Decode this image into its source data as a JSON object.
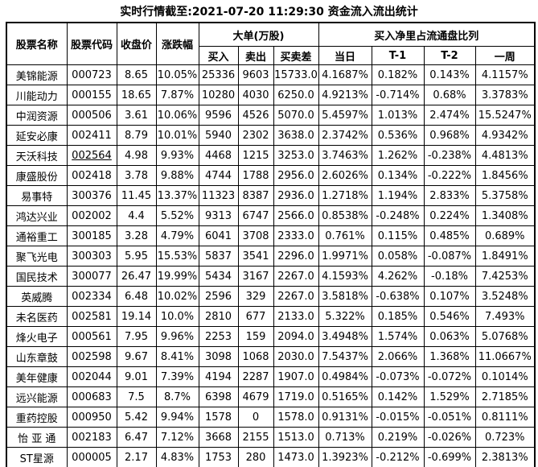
{
  "title": "实时行情截至:2021-07-20 11:29:30 资金流入流出统计",
  "colors": {
    "link_blue": "#1565A5",
    "text_black": "#000000",
    "border_black": "#000000",
    "background_white": "#FFFFFF"
  },
  "table": {
    "headers": {
      "stock_name": "股票名称",
      "stock_code": "股票代码",
      "close_price": "收盘价",
      "change_pct": "涨跌幅",
      "big_order_group": "大单(万股)",
      "buy": "买入",
      "sell": "卖出",
      "diff": "买卖差",
      "ratio_group": "买入净里占流通盘比列",
      "today": "当日",
      "t1": "T-1",
      "t2": "T-2",
      "week": "一周"
    },
    "rows": [
      {
        "name": "美锦能源",
        "code": "000723",
        "close": "8.65",
        "change": "10.05%",
        "buy": "25336",
        "sell": "9603",
        "diff": "15733.0",
        "today": "4.1687%",
        "t1": "0.182%",
        "t2": "0.143%",
        "week": "4.1157%",
        "code_underlined": false
      },
      {
        "name": "川能动力",
        "code": "000155",
        "close": "18.65",
        "change": "7.87%",
        "buy": "10280",
        "sell": "4030",
        "diff": "6250.0",
        "today": "4.9213%",
        "t1": "-0.714%",
        "t2": "0.68%",
        "week": "3.3783%",
        "code_underlined": false
      },
      {
        "name": "中润资源",
        "code": "000506",
        "close": "3.61",
        "change": "10.06%",
        "buy": "9596",
        "sell": "4526",
        "diff": "5070.0",
        "today": "5.4597%",
        "t1": "1.013%",
        "t2": "2.474%",
        "week": "15.5247%",
        "code_underlined": false
      },
      {
        "name": "延安必康",
        "code": "002411",
        "close": "8.79",
        "change": "10.01%",
        "buy": "5940",
        "sell": "2302",
        "diff": "3638.0",
        "today": "2.3742%",
        "t1": "0.536%",
        "t2": "0.968%",
        "week": "4.9342%",
        "code_underlined": false
      },
      {
        "name": "天沃科技",
        "code": "002564",
        "close": "4.98",
        "change": "9.93%",
        "buy": "4468",
        "sell": "1215",
        "diff": "3253.0",
        "today": "3.7463%",
        "t1": "1.262%",
        "t2": "-0.238%",
        "week": "4.4813%",
        "code_underlined": true
      },
      {
        "name": "康盛股份",
        "code": "002418",
        "close": "3.78",
        "change": "9.88%",
        "buy": "4744",
        "sell": "1788",
        "diff": "2956.0",
        "today": "2.6026%",
        "t1": "0.134%",
        "t2": "-0.222%",
        "week": "1.8456%",
        "code_underlined": false
      },
      {
        "name": "易事特",
        "code": "300376",
        "close": "11.45",
        "change": "13.37%",
        "buy": "11323",
        "sell": "8387",
        "diff": "2936.0",
        "today": "1.2718%",
        "t1": "1.194%",
        "t2": "2.833%",
        "week": "5.3758%",
        "code_underlined": false
      },
      {
        "name": "鸿达兴业",
        "code": "002002",
        "close": "4.4",
        "change": "5.52%",
        "buy": "9313",
        "sell": "6747",
        "diff": "2566.0",
        "today": "0.8538%",
        "t1": "-0.248%",
        "t2": "0.224%",
        "week": "1.3408%",
        "code_underlined": false
      },
      {
        "name": "通裕重工",
        "code": "300185",
        "close": "3.28",
        "change": "4.79%",
        "buy": "6041",
        "sell": "3708",
        "diff": "2333.0",
        "today": "0.761%",
        "t1": "0.115%",
        "t2": "0.485%",
        "week": "0.689%",
        "code_underlined": false
      },
      {
        "name": "聚飞光电",
        "code": "300303",
        "close": "5.95",
        "change": "15.53%",
        "buy": "5837",
        "sell": "3541",
        "diff": "2296.0",
        "today": "1.9971%",
        "t1": "0.058%",
        "t2": "-0.087%",
        "week": "1.8491%",
        "code_underlined": false
      },
      {
        "name": "国民技术",
        "code": "300077",
        "close": "26.47",
        "change": "19.99%",
        "buy": "5434",
        "sell": "3167",
        "diff": "2267.0",
        "today": "4.1593%",
        "t1": "4.262%",
        "t2": "-0.18%",
        "week": "7.4253%",
        "code_underlined": false
      },
      {
        "name": "英威腾",
        "code": "002334",
        "close": "6.48",
        "change": "10.02%",
        "buy": "2596",
        "sell": "329",
        "diff": "2267.0",
        "today": "3.5818%",
        "t1": "-0.638%",
        "t2": "0.107%",
        "week": "3.5248%",
        "code_underlined": false
      },
      {
        "name": "未名医药",
        "code": "002581",
        "close": "19.14",
        "change": "10.0%",
        "buy": "2810",
        "sell": "677",
        "diff": "2133.0",
        "today": "5.322%",
        "t1": "0.185%",
        "t2": "0.546%",
        "week": "7.493%",
        "code_underlined": false
      },
      {
        "name": "烽火电子",
        "code": "000561",
        "close": "7.95",
        "change": "9.96%",
        "buy": "2253",
        "sell": "159",
        "diff": "2094.0",
        "today": "3.4948%",
        "t1": "1.574%",
        "t2": "0.063%",
        "week": "5.0768%",
        "code_underlined": false
      },
      {
        "name": "山东章鼓",
        "code": "002598",
        "close": "9.67",
        "change": "8.41%",
        "buy": "3098",
        "sell": "1068",
        "diff": "2030.0",
        "today": "7.5437%",
        "t1": "2.066%",
        "t2": "1.368%",
        "week": "11.0667%",
        "code_underlined": false
      },
      {
        "name": "美年健康",
        "code": "002044",
        "close": "9.01",
        "change": "7.39%",
        "buy": "4194",
        "sell": "2287",
        "diff": "1907.0",
        "today": "0.4984%",
        "t1": "-0.073%",
        "t2": "-0.072%",
        "week": "0.1014%",
        "code_underlined": false
      },
      {
        "name": "远兴能源",
        "code": "000683",
        "close": "7.5",
        "change": "8.7%",
        "buy": "6398",
        "sell": "4679",
        "diff": "1719.0",
        "today": "0.5165%",
        "t1": "0.142%",
        "t2": "1.529%",
        "week": "2.7185%",
        "code_underlined": false
      },
      {
        "name": "重药控股",
        "code": "000950",
        "close": "5.42",
        "change": "9.94%",
        "buy": "1578",
        "sell": "0",
        "diff": "1578.0",
        "today": "0.9131%",
        "t1": "-0.015%",
        "t2": "-0.051%",
        "week": "0.8111%",
        "code_underlined": false
      },
      {
        "name": "怡 亚 通",
        "code": "002183",
        "close": "6.47",
        "change": "7.12%",
        "buy": "3668",
        "sell": "2155",
        "diff": "1513.0",
        "today": "0.713%",
        "t1": "0.219%",
        "t2": "-0.026%",
        "week": "0.723%",
        "code_underlined": false
      },
      {
        "name": "ST星源",
        "code": "000005",
        "close": "2.17",
        "change": "4.83%",
        "buy": "1753",
        "sell": "280",
        "diff": "1473.0",
        "today": "1.3923%",
        "t1": "-0.212%",
        "t2": "-0.699%",
        "week": "2.3813%",
        "code_underlined": false
      }
    ]
  }
}
